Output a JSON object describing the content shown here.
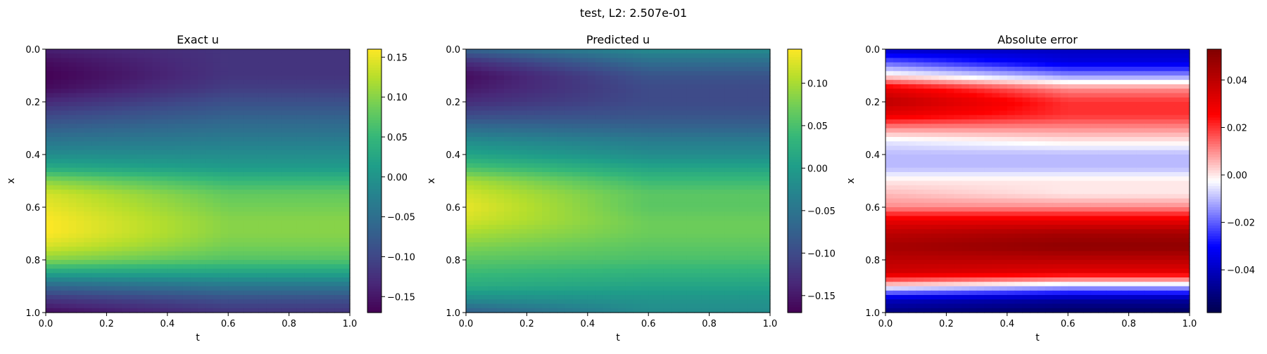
{
  "figure": {
    "suptitle": "test, L2: 2.507e-01"
  },
  "chart_data": [
    {
      "type": "heatmap",
      "title": "Exact u",
      "xlabel": "t",
      "ylabel": "x",
      "xlim": [
        0.0,
        1.0
      ],
      "ylim": [
        1.0,
        0.0
      ],
      "x_ticks": [
        "0.0",
        "0.2",
        "0.4",
        "0.6",
        "0.8",
        "1.0"
      ],
      "y_ticks": [
        "0.0",
        "0.2",
        "0.4",
        "0.6",
        "0.8",
        "1.0"
      ],
      "colormap": "viridis",
      "colorbar_range": [
        -0.17,
        0.16
      ],
      "colorbar_ticks": [
        "0.15",
        "0.10",
        "0.05",
        "0.00",
        "−0.05",
        "−0.10",
        "−0.15"
      ],
      "colorbar_tick_values": [
        0.15,
        0.1,
        0.05,
        0.0,
        -0.05,
        -0.1,
        -0.15
      ],
      "profile_x": [
        0.0,
        0.05,
        0.1,
        0.15,
        0.2,
        0.25,
        0.3,
        0.35,
        0.4,
        0.45,
        0.5,
        0.55,
        0.6,
        0.65,
        0.7,
        0.75,
        0.8,
        0.85,
        0.9,
        0.95,
        1.0
      ],
      "profile_start": [
        -0.14,
        -0.16,
        -0.17,
        -0.16,
        -0.13,
        -0.1,
        -0.07,
        -0.04,
        -0.01,
        0.03,
        0.1,
        0.14,
        0.15,
        0.16,
        0.16,
        0.14,
        0.1,
        0.02,
        -0.06,
        -0.12,
        -0.16
      ],
      "profile_end": [
        -0.12,
        -0.12,
        -0.12,
        -0.11,
        -0.09,
        -0.07,
        -0.05,
        -0.03,
        -0.01,
        0.01,
        0.05,
        0.08,
        0.09,
        0.1,
        0.1,
        0.09,
        0.07,
        0.02,
        -0.04,
        -0.09,
        -0.12
      ]
    },
    {
      "type": "heatmap",
      "title": "Predicted u",
      "xlabel": "t",
      "ylabel": "x",
      "xlim": [
        0.0,
        1.0
      ],
      "ylim": [
        1.0,
        0.0
      ],
      "x_ticks": [
        "0.0",
        "0.2",
        "0.4",
        "0.6",
        "0.8",
        "1.0"
      ],
      "y_ticks": [
        "0.0",
        "0.2",
        "0.4",
        "0.6",
        "0.8",
        "1.0"
      ],
      "colormap": "viridis",
      "colorbar_range": [
        -0.17,
        0.14
      ],
      "colorbar_ticks": [
        "0.10",
        "0.05",
        "0.00",
        "−0.05",
        "−0.10",
        "−0.15"
      ],
      "colorbar_tick_values": [
        0.1,
        0.05,
        0.0,
        -0.05,
        -0.1,
        -0.15
      ],
      "profile_x": [
        0.0,
        0.05,
        0.1,
        0.15,
        0.2,
        0.25,
        0.3,
        0.35,
        0.4,
        0.45,
        0.5,
        0.55,
        0.6,
        0.65,
        0.7,
        0.75,
        0.8,
        0.85,
        0.9,
        0.95,
        1.0
      ],
      "profile_start": [
        -0.07,
        -0.13,
        -0.16,
        -0.15,
        -0.13,
        -0.1,
        -0.06,
        -0.02,
        0.01,
        0.05,
        0.1,
        0.12,
        0.13,
        0.12,
        0.1,
        0.08,
        0.06,
        0.04,
        0.02,
        -0.02,
        -0.08
      ],
      "profile_end": [
        -0.02,
        -0.06,
        -0.09,
        -0.1,
        -0.1,
        -0.09,
        -0.07,
        -0.04,
        -0.02,
        0.01,
        0.04,
        0.06,
        0.06,
        0.07,
        0.07,
        0.06,
        0.05,
        0.03,
        0.01,
        -0.01,
        -0.02
      ]
    },
    {
      "type": "heatmap",
      "title": "Absolute error",
      "xlabel": "t",
      "ylabel": "x",
      "xlim": [
        0.0,
        1.0
      ],
      "ylim": [
        1.0,
        0.0
      ],
      "x_ticks": [
        "0.0",
        "0.2",
        "0.4",
        "0.6",
        "0.8",
        "1.0"
      ],
      "y_ticks": [
        "0.0",
        "0.2",
        "0.4",
        "0.6",
        "0.8",
        "1.0"
      ],
      "colormap": "seismic",
      "colorbar_range": [
        -0.058,
        0.053
      ],
      "colorbar_ticks": [
        "0.04",
        "0.02",
        "0.00",
        "−0.02",
        "−0.04"
      ],
      "colorbar_tick_values": [
        0.04,
        0.02,
        0.0,
        -0.02,
        -0.04
      ],
      "profile_x": [
        0.0,
        0.05,
        0.1,
        0.15,
        0.2,
        0.25,
        0.3,
        0.35,
        0.4,
        0.45,
        0.5,
        0.55,
        0.6,
        0.65,
        0.7,
        0.75,
        0.8,
        0.85,
        0.9,
        0.95,
        1.0
      ],
      "profile_start": [
        -0.04,
        -0.02,
        0.0,
        0.03,
        0.04,
        0.03,
        0.01,
        -0.005,
        -0.01,
        -0.01,
        0.0,
        0.005,
        0.01,
        0.03,
        0.04,
        0.045,
        0.04,
        0.035,
        0.0,
        -0.04,
        -0.05
      ],
      "profile_end": [
        -0.04,
        -0.035,
        -0.015,
        0.01,
        0.02,
        0.02,
        0.01,
        0.0,
        -0.01,
        -0.01,
        0.0,
        0.0,
        0.01,
        0.03,
        0.045,
        0.05,
        0.04,
        0.03,
        -0.01,
        -0.045,
        -0.055
      ]
    }
  ]
}
